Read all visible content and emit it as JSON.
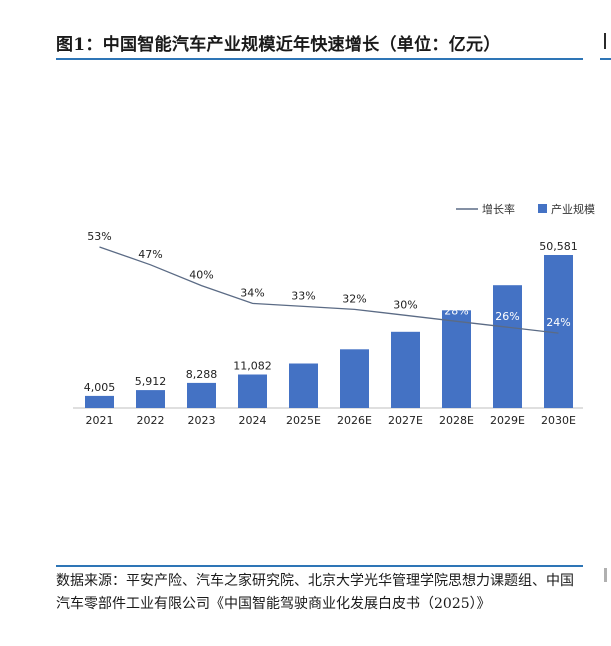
{
  "figure": {
    "title": "图1：中国智能汽车产业规模近年快速增长（单位：亿元）",
    "source": "数据来源：平安产险、汽车之家研究院、北京大学光华管理学院思想力课题组、中国汽车零部件工业有限公司《中国智能驾驶商业化发展白皮书（2025）》"
  },
  "colors": {
    "accent": "#2e75b6",
    "bar": "#4472c4",
    "line": "#5b6b85"
  },
  "chart_data": {
    "type": "bar",
    "categories": [
      "2021",
      "2022",
      "2023",
      "2024",
      "2025E",
      "2026E",
      "2027E",
      "2028E",
      "2029E",
      "2030E"
    ],
    "series": [
      {
        "name": "产业规模",
        "type": "bar",
        "values": [
          4005,
          5912,
          8288,
          11082,
          14700,
          19400,
          25200,
          32300,
          40600,
          50581
        ],
        "labels": [
          "4,005",
          "5,912",
          "8,288",
          "11,082",
          "",
          "",
          "",
          "",
          "",
          "50,581"
        ]
      },
      {
        "name": "增长率",
        "type": "line",
        "values": [
          53,
          47,
          40,
          34,
          33,
          32,
          30,
          28,
          26,
          24
        ],
        "labels": [
          "53%",
          "47%",
          "40%",
          "34%",
          "33%",
          "32%",
          "30%",
          "28%",
          "26%",
          "24%"
        ]
      }
    ],
    "legend_position": "top-right",
    "grid": false
  }
}
